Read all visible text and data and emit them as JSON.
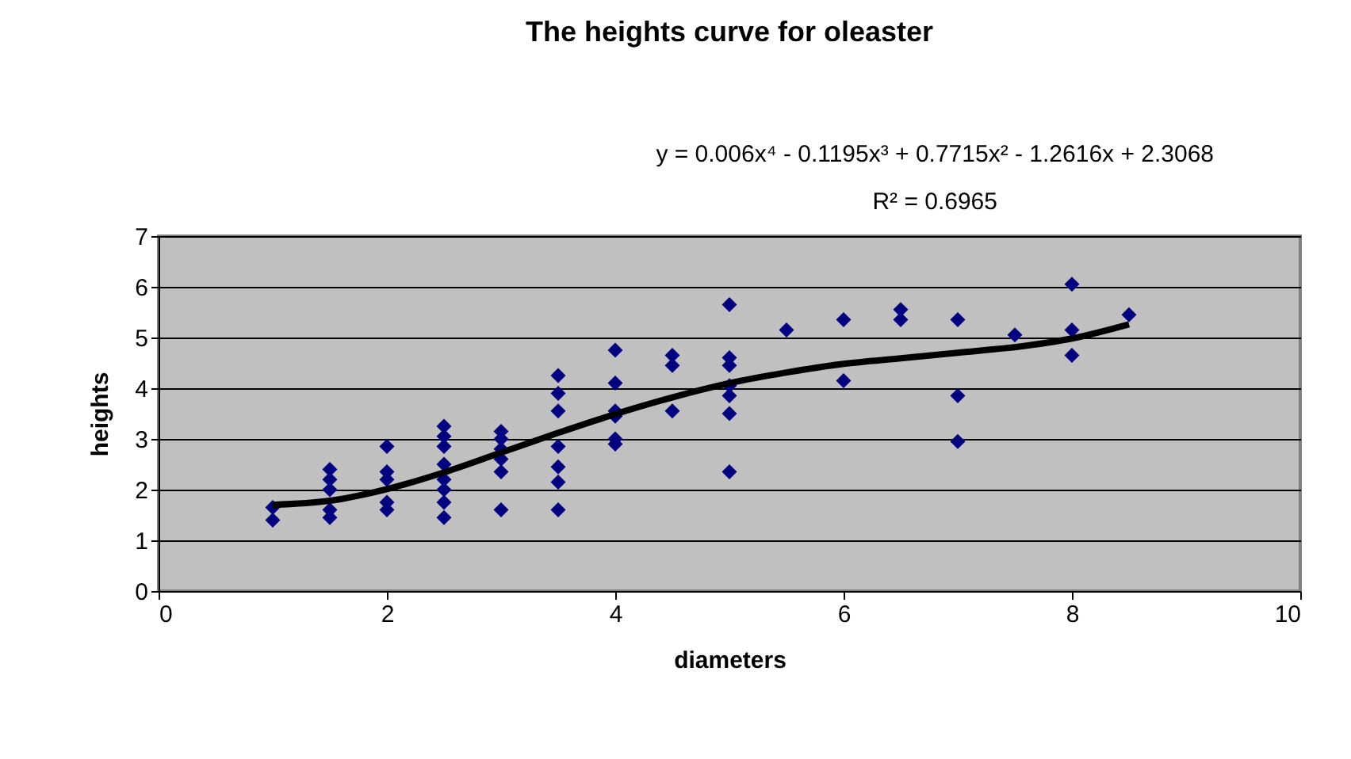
{
  "chart_data": {
    "type": "scatter",
    "title": "The heights curve for oleaster",
    "xlabel": "diameters",
    "ylabel": "heights",
    "annotations": [
      "y = 0.006x⁴ - 0.1195x³ + 0.7715x² - 1.2616x + 2.3068",
      "R² = 0.6965"
    ],
    "series": [
      {
        "type": "scatter",
        "color": "#000080",
        "marker": "diamond",
        "x": [
          1,
          1,
          1.5,
          1.5,
          1.5,
          1.5,
          1.5,
          2,
          2,
          2,
          2,
          2,
          2.5,
          2.5,
          2.5,
          2.5,
          2.5,
          2.5,
          2.5,
          2.5,
          3,
          3,
          3,
          3,
          3,
          3,
          3.5,
          3.5,
          3.5,
          3.5,
          3.5,
          3.5,
          3.5,
          4,
          4,
          4,
          4,
          4,
          4,
          4.5,
          4.5,
          4.5,
          5,
          5,
          5,
          5,
          5,
          5,
          5,
          5.5,
          6,
          6,
          6.5,
          6.5,
          7,
          7,
          7,
          7.5,
          8,
          8,
          8,
          8.5
        ],
        "values": [
          1.65,
          1.4,
          2.4,
          2.2,
          2.0,
          1.6,
          1.45,
          2.85,
          2.35,
          2.2,
          1.75,
          1.6,
          3.25,
          3.05,
          2.85,
          2.5,
          2.2,
          2.0,
          1.75,
          1.45,
          3.15,
          3.0,
          2.8,
          2.6,
          2.35,
          1.6,
          4.25,
          3.9,
          3.55,
          2.85,
          2.45,
          2.15,
          1.6,
          4.75,
          4.1,
          3.55,
          3.45,
          3.0,
          2.9,
          4.65,
          4.45,
          3.55,
          5.65,
          4.6,
          4.45,
          4.05,
          3.85,
          3.5,
          2.35,
          5.15,
          5.35,
          4.15,
          5.55,
          5.35,
          5.35,
          3.85,
          2.95,
          5.05,
          6.05,
          5.15,
          4.65,
          5.45
        ]
      },
      {
        "type": "line",
        "color": "#000000",
        "x": [
          1,
          1.5,
          2,
          2.5,
          3,
          3.5,
          4,
          4.5,
          5,
          5.5,
          6,
          6.5,
          7,
          7.5,
          8,
          8.5
        ],
        "values": [
          1.7,
          1.78,
          2.01,
          2.34,
          2.73,
          3.12,
          3.49,
          3.82,
          4.1,
          4.31,
          4.48,
          4.59,
          4.7,
          4.81,
          4.98,
          5.26
        ]
      }
    ],
    "xlim": [
      0,
      10
    ],
    "xticks": [
      0,
      2,
      4,
      6,
      8,
      10
    ],
    "ylim": [
      0,
      7
    ],
    "yticks": [
      0,
      1,
      2,
      3,
      4,
      5,
      6,
      7
    ],
    "grid": "y",
    "line_style": "solid"
  }
}
